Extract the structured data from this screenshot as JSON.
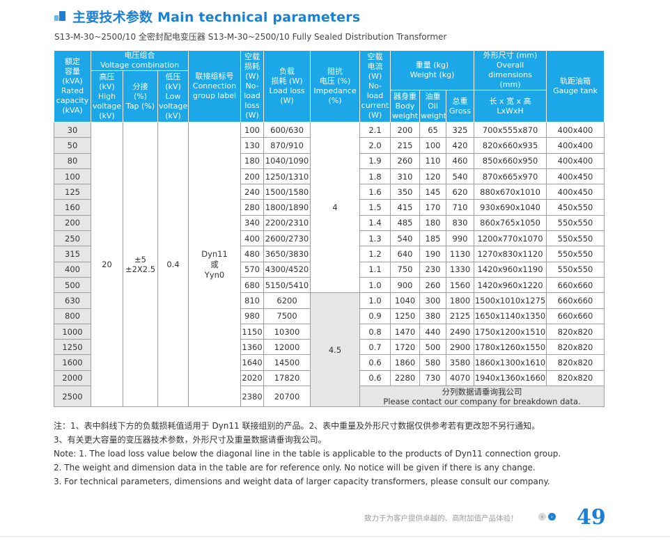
{
  "header": {
    "title": "主要技术参数 Main technical parameters",
    "subtitle": "S13-M-30~2500/10 全密封配电变压器 S13-M-30~2500/10 Fully Sealed Distribution Transformer"
  },
  "table": {
    "headers": {
      "rated_capacity": [
        "额定",
        "容量",
        "(kVA)",
        "Rated",
        "capacity",
        "(kVA)"
      ],
      "voltage_combination": [
        "电压组合",
        "Voltage combination"
      ],
      "high_voltage": [
        "高压",
        "(kV)",
        "High",
        "voltage",
        "(kV)"
      ],
      "tap": [
        "分接",
        "(%)",
        "Tap (%)"
      ],
      "low_voltage": [
        "低压",
        "(kV)",
        "Low",
        "voltage",
        "(kV)"
      ],
      "connection": [
        "联接组标号",
        "Connection",
        "group label"
      ],
      "no_load_loss": [
        "空载",
        "损耗",
        "(W)",
        "No-",
        "load",
        "loss",
        "(W)"
      ],
      "load_loss": [
        "负载",
        "损耗 (W)",
        "Load loss",
        "(W)"
      ],
      "impedance": [
        "阻抗",
        "电压 (%)",
        "Impedance",
        "(%)"
      ],
      "no_load_current": [
        "空载",
        "电流",
        "(W)",
        "No-",
        "load",
        "current",
        "(W)"
      ],
      "weight": [
        "重量 (kg)",
        "Weight (kg)"
      ],
      "body_weight": [
        "器身重",
        "Body",
        "weight"
      ],
      "oil_weight": [
        "油重",
        "Oil",
        "weight"
      ],
      "gross": [
        "总重",
        "Gross"
      ],
      "dimensions": [
        "外形尺寸 (mm)",
        "Overall",
        "dimensions",
        "(mm)"
      ],
      "lwh": [
        "长 x 宽 x 高",
        "LxWxH"
      ],
      "gauge": [
        "轨距油箱",
        "Gauge tank"
      ]
    },
    "merged": {
      "high_voltage": "20",
      "tap": [
        "±5",
        "±2X2.5"
      ],
      "low_voltage": "0.4",
      "connection": [
        "Dyn11",
        "或",
        "Yyn0"
      ],
      "impedance_small": "4",
      "impedance_large": "4.5",
      "contact_cn": "分列数据请垂询我公司",
      "contact_en": "Please contact our company for breakdown data."
    },
    "rows": [
      {
        "cap": "30",
        "nll": "100",
        "ll": "600/630",
        "nlc": "2.1",
        "body": "200",
        "oil": "65",
        "gross": "325",
        "dim": "700x555x870",
        "gauge": "400x400"
      },
      {
        "cap": "50",
        "nll": "130",
        "ll": "870/910",
        "nlc": "2.0",
        "body": "215",
        "oil": "100",
        "gross": "420",
        "dim": "820x660x935",
        "gauge": "400x400"
      },
      {
        "cap": "80",
        "nll": "180",
        "ll": "1040/1090",
        "nlc": "1.9",
        "body": "260",
        "oil": "110",
        "gross": "460",
        "dim": "850x660x950",
        "gauge": "400x400"
      },
      {
        "cap": "100",
        "nll": "200",
        "ll": "1250/1310",
        "nlc": "1.8",
        "body": "310",
        "oil": "120",
        "gross": "540",
        "dim": "870x665x970",
        "gauge": "400x450"
      },
      {
        "cap": "125",
        "nll": "240",
        "ll": "1500/1580",
        "nlc": "1.6",
        "body": "350",
        "oil": "145",
        "gross": "620",
        "dim": "880x670x1010",
        "gauge": "400x450"
      },
      {
        "cap": "160",
        "nll": "280",
        "ll": "1800/1890",
        "nlc": "1.5",
        "body": "415",
        "oil": "170",
        "gross": "710",
        "dim": "930x690x1040",
        "gauge": "450x550"
      },
      {
        "cap": "200",
        "nll": "340",
        "ll": "2200/2310",
        "nlc": "1.4",
        "body": "485",
        "oil": "180",
        "gross": "830",
        "dim": "860x765x1050",
        "gauge": "550x550"
      },
      {
        "cap": "250",
        "nll": "400",
        "ll": "2600/2730",
        "nlc": "1.3",
        "body": "540",
        "oil": "185",
        "gross": "990",
        "dim": "1200x770x1070",
        "gauge": "550x550"
      },
      {
        "cap": "315",
        "nll": "480",
        "ll": "3650/3830",
        "nlc": "1.2",
        "body": "640",
        "oil": "190",
        "gross": "1130",
        "dim": "1270x830x1120",
        "gauge": "550x550"
      },
      {
        "cap": "400",
        "nll": "570",
        "ll": "4300/4520",
        "nlc": "1.1",
        "body": "750",
        "oil": "230",
        "gross": "1330",
        "dim": "1420x960x1190",
        "gauge": "550x550"
      },
      {
        "cap": "500",
        "nll": "680",
        "ll": "5150/5410",
        "nlc": "1.0",
        "body": "900",
        "oil": "260",
        "gross": "1560",
        "dim": "1420x960x1220",
        "gauge": "660x660"
      },
      {
        "cap": "630",
        "nll": "810",
        "ll": "6200",
        "nlc": "1.0",
        "body": "1040",
        "oil": "300",
        "gross": "1800",
        "dim": "1500x1010x1275",
        "gauge": "660x660"
      },
      {
        "cap": "800",
        "nll": "980",
        "ll": "7500",
        "nlc": "0.9",
        "body": "1250",
        "oil": "380",
        "gross": "2125",
        "dim": "1650x1140x1350",
        "gauge": "660x660"
      },
      {
        "cap": "1000",
        "nll": "1150",
        "ll": "10300",
        "nlc": "0.8",
        "body": "1470",
        "oil": "440",
        "gross": "2490",
        "dim": "1750x1200x1510",
        "gauge": "820x820"
      },
      {
        "cap": "1250",
        "nll": "1360",
        "ll": "12000",
        "nlc": "0.7",
        "body": "1720",
        "oil": "500",
        "gross": "2900",
        "dim": "1780x1260x1550",
        "gauge": "820x820"
      },
      {
        "cap": "1600",
        "nll": "1640",
        "ll": "14500",
        "nlc": "0.6",
        "body": "1860",
        "oil": "580",
        "gross": "3580",
        "dim": "1860x1300x1610",
        "gauge": "820x820"
      },
      {
        "cap": "2000",
        "nll": "2020",
        "ll": "17820",
        "nlc": "0.6",
        "body": "2280",
        "oil": "730",
        "gross": "4070",
        "dim": "1940x1360x1660",
        "gauge": "820x820"
      },
      {
        "cap": "2500",
        "nll": "2380",
        "ll": "20700"
      }
    ]
  },
  "notes": [
    "注：1、表中斜线下方的负载损耗值适用于 Dyn11 联接组别的产品。2、表中重量及外形尺寸数据仅供参考若有更改恕不另行通知。",
    "3、有关更大容量的变压器技术参数，外形尺寸及重量数据请垂询我公司。",
    "Note: 1. The load loss value below the diagonal line in the table is applicable to the products of Dyn11 connection group.",
    "2. The weight and dimension data in the table are for reference only. No notice will be given if there is any change.",
    "3. For technical parameters, dimensions and weight data of larger capacity transformers, please consult our company."
  ],
  "footer": {
    "slogan": "致力于为客户提供卓越的、高附加值产品体验！",
    "prev_icon": "‹",
    "next_icon": "›",
    "page_number": "49"
  },
  "colors": {
    "accent": "#1b7fd6",
    "header_bg": "#1ba7e8",
    "gray_cell": "#e6e6e6"
  }
}
